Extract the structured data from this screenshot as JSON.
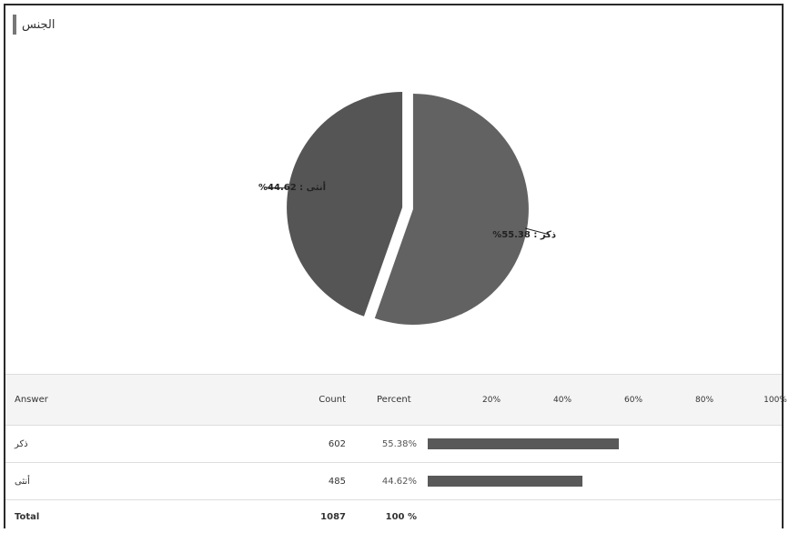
{
  "header": {
    "title": "الجنس"
  },
  "chart_data": {
    "type": "pie",
    "slices": [
      {
        "name": "ذكر",
        "value": 55.38,
        "label": "ذكر : 55.38%",
        "color": "#626262"
      },
      {
        "name": "أنثى",
        "value": 44.62,
        "label": "أنثى : 44.62%",
        "color": "#555555"
      }
    ]
  },
  "table": {
    "headers": {
      "answer": "Answer",
      "count": "Count",
      "percent": "Percent"
    },
    "ticks": [
      "20%",
      "40%",
      "60%",
      "80%",
      "100%"
    ],
    "rows": [
      {
        "answer": "ذكر",
        "count": "602",
        "percent": "55.38%",
        "fraction": 0.5538
      },
      {
        "answer": "أنثى",
        "count": "485",
        "percent": "44.62%",
        "fraction": 0.4462
      }
    ],
    "total": {
      "label": "Total",
      "count": "1087",
      "percent": "100 %"
    },
    "bar_color": "#595959"
  }
}
